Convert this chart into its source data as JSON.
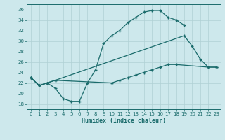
{
  "xlabel": "Humidex (Indice chaleur)",
  "bg_color": "#cde8ec",
  "grid_color": "#b0d0d4",
  "line_color": "#1a6b6b",
  "xlim": [
    -0.5,
    23.5
  ],
  "ylim": [
    17,
    37
  ],
  "yticks": [
    18,
    20,
    22,
    24,
    26,
    28,
    30,
    32,
    34,
    36
  ],
  "xticks": [
    0,
    1,
    2,
    3,
    4,
    5,
    6,
    7,
    8,
    9,
    10,
    11,
    12,
    13,
    14,
    15,
    16,
    17,
    18,
    19,
    20,
    21,
    22,
    23
  ],
  "curve1_x": [
    0,
    1,
    2,
    3,
    4,
    5,
    6,
    7,
    8,
    9,
    10,
    11,
    12,
    13,
    14,
    15,
    16,
    17,
    18,
    19
  ],
  "curve1_y": [
    23.0,
    21.5,
    22.0,
    21.0,
    19.0,
    18.5,
    18.5,
    22.0,
    24.5,
    29.5,
    31.0,
    32.0,
    33.5,
    34.5,
    35.5,
    35.8,
    35.8,
    34.5,
    34.0,
    33.0
  ],
  "curve2_x": [
    0,
    1,
    2,
    3,
    19,
    20,
    21,
    22,
    23
  ],
  "curve2_y": [
    23.0,
    21.5,
    22.0,
    22.5,
    31.0,
    29.0,
    26.5,
    25.0,
    25.0
  ],
  "curve3_x": [
    0,
    1,
    2,
    3,
    10,
    11,
    12,
    13,
    14,
    15,
    16,
    17,
    18,
    22,
    23
  ],
  "curve3_y": [
    23.0,
    21.5,
    22.0,
    22.5,
    22.0,
    22.5,
    23.0,
    23.5,
    24.0,
    24.5,
    25.0,
    25.5,
    25.5,
    25.0,
    25.0
  ]
}
